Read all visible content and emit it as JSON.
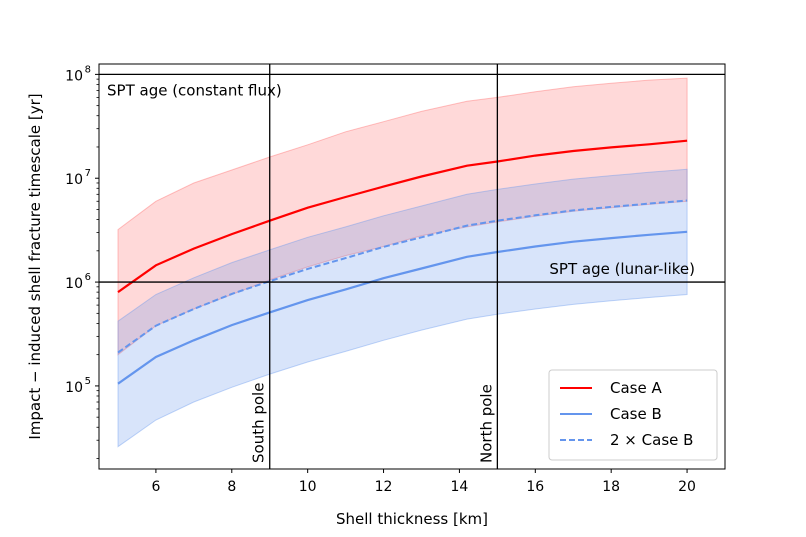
{
  "chart_data": {
    "type": "line",
    "title": "",
    "xlabel": "Shell thickness [km]",
    "ylabel": "Impact − induced shell fracture timescale [yr]",
    "xlim": [
      4.5,
      21.0
    ],
    "ylim_log10": [
      4.2,
      8.1
    ],
    "yscale": "log",
    "x_ticks": [
      6,
      8,
      10,
      12,
      14,
      16,
      18,
      20
    ],
    "x_tick_labels": [
      "6",
      "8",
      "10",
      "12",
      "14",
      "16",
      "18",
      "20"
    ],
    "y_ticks_log10": [
      5,
      6,
      7,
      8
    ],
    "y_tick_bases": [
      "10",
      "10",
      "10",
      "10"
    ],
    "y_tick_exponents": [
      "5",
      "6",
      "7",
      "8"
    ],
    "x": [
      5,
      6,
      7,
      8,
      9,
      10,
      11,
      12,
      13,
      14.2,
      15,
      16,
      17,
      18,
      19,
      20
    ],
    "series": [
      {
        "name": "Case A",
        "color": "#ff0000",
        "dash": "solid",
        "values": [
          800000,
          1450000,
          2100000,
          2900000,
          3900000,
          5200000,
          6600000,
          8300000,
          10400000,
          13200000,
          14500000,
          16500000,
          18300000,
          19800000,
          21200000,
          23000000
        ],
        "band_lower": [
          200000,
          380000,
          550000,
          760000,
          1050000,
          1400000,
          1800000,
          2200000,
          2800000,
          3400000,
          3800000,
          4300000,
          4800000,
          5200000,
          5600000,
          6000000
        ],
        "band_upper": [
          3200000,
          6000000,
          9000000,
          12000000,
          16000000,
          21000000,
          28000000,
          35000000,
          44000000,
          55000000,
          60000000,
          68000000,
          76000000,
          82000000,
          88000000,
          92000000
        ],
        "band_color": "#ff6666"
      },
      {
        "name": "Case B",
        "color": "#6495ed",
        "dash": "solid",
        "values": [
          105000,
          190000,
          275000,
          385000,
          510000,
          670000,
          850000,
          1090000,
          1350000,
          1750000,
          1950000,
          2200000,
          2450000,
          2650000,
          2850000,
          3050000
        ],
        "band_lower": [
          26000,
          47000,
          70000,
          97000,
          130000,
          170000,
          215000,
          275000,
          345000,
          440000,
          490000,
          550000,
          610000,
          660000,
          710000,
          760000
        ],
        "band_upper": [
          420000,
          760000,
          1100000,
          1540000,
          2040000,
          2700000,
          3400000,
          4350000,
          5400000,
          7000000,
          7800000,
          8800000,
          9800000,
          10600000,
          11400000,
          12200000
        ],
        "band_color": "#6495ed"
      },
      {
        "name": "2 × Case B",
        "color": "#6495ed",
        "dash": "dashed",
        "values": [
          210000,
          380000,
          550000,
          770000,
          1020000,
          1340000,
          1700000,
          2180000,
          2700000,
          3500000,
          3900000,
          4400000,
          4900000,
          5300000,
          5700000,
          6100000
        ]
      }
    ],
    "hlines": [
      {
        "y": 100000000,
        "label": "SPT age (constant flux)"
      },
      {
        "y": 1000000,
        "label": "SPT age (lunar-like)"
      }
    ],
    "vlines": [
      {
        "x": 9,
        "label": "South pole"
      },
      {
        "x": 15,
        "label": "North pole"
      }
    ],
    "legend_position": "lower-right"
  }
}
